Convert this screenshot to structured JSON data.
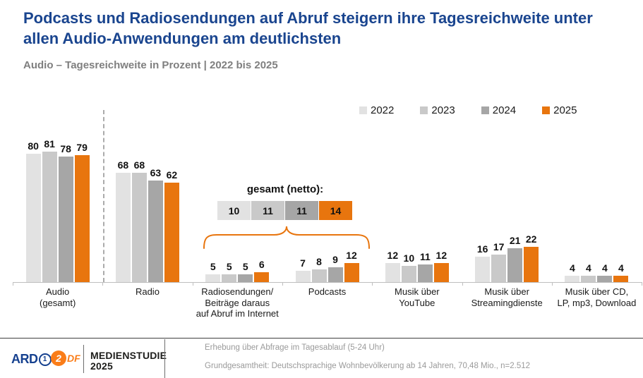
{
  "title": "Podcasts und Radiosendungen auf Abruf steigern ihre Tagesreichweite unter allen Audio-Anwendungen am deutlichsten",
  "subtitle": "Audio – Tagesreichweite in Prozent | 2022 bis 2025",
  "legend": {
    "items": [
      {
        "label": "2022",
        "color": "#e2e2e2"
      },
      {
        "label": "2023",
        "color": "#c9c9c9"
      },
      {
        "label": "2024",
        "color": "#a6a6a6"
      },
      {
        "label": "2025",
        "color": "#e8750e"
      }
    ]
  },
  "chart_data": {
    "type": "bar",
    "title": "Podcasts und Radiosendungen auf Abruf steigern ihre Tagesreichweite unter allen Audio-Anwendungen am deutlichsten",
    "subtitle": "Audio – Tagesreichweite in Prozent | 2022 bis 2025",
    "ylabel": "Tagesreichweite in Prozent",
    "ylim": [
      0,
      85
    ],
    "grid": false,
    "legend_position": "top-right",
    "accent_color": "#e8750e",
    "categories": [
      "Audio (gesamt)",
      "Radio",
      "Radiosendungen/ Beiträge daraus auf Abruf im Internet",
      "Podcasts",
      "Musik über YouTube",
      "Musik über Streamingdienste",
      "Musik über CD, LP, mp3, Download"
    ],
    "categories_lines": [
      [
        "Audio",
        "(gesamt)"
      ],
      [
        "Radio"
      ],
      [
        "Radiosendungen/",
        "Beiträge daraus",
        "auf Abruf im Internet"
      ],
      [
        "Podcasts"
      ],
      [
        "Musik über",
        "YouTube"
      ],
      [
        "Musik über",
        "Streamingdienste"
      ],
      [
        "Musik über CD,",
        "LP, mp3, Download"
      ]
    ],
    "series": [
      {
        "name": "2022",
        "color": "#e2e2e2",
        "values": [
          80,
          68,
          5,
          7,
          12,
          16,
          4
        ]
      },
      {
        "name": "2023",
        "color": "#c9c9c9",
        "values": [
          81,
          68,
          5,
          8,
          10,
          17,
          4
        ]
      },
      {
        "name": "2024",
        "color": "#a6a6a6",
        "values": [
          78,
          63,
          5,
          9,
          11,
          21,
          4
        ]
      },
      {
        "name": "2025",
        "color": "#e8750e",
        "values": [
          79,
          62,
          6,
          12,
          12,
          22,
          4
        ]
      }
    ],
    "annotation": {
      "label": "gesamt (netto):",
      "values": [
        10,
        11,
        11,
        14
      ],
      "span_categories": [
        "Radiosendungen/ Beiträge daraus auf Abruf im Internet",
        "Podcasts"
      ]
    }
  },
  "footer": {
    "ard_label": "ARD",
    "ard_circle": "1",
    "zdf_circle": "2",
    "zdf_label": "DF",
    "brand_line1": "MEDIENSTUDIE",
    "brand_line2": "2025",
    "note1": "Erhebung über Abfrage im Tagesablauf (5-24 Uhr)",
    "note2": "Grundgesamtheit: Deutschsprachige Wohnbevölkerung ab 14 Jahren, 70,48 Mio., n=2.512"
  }
}
